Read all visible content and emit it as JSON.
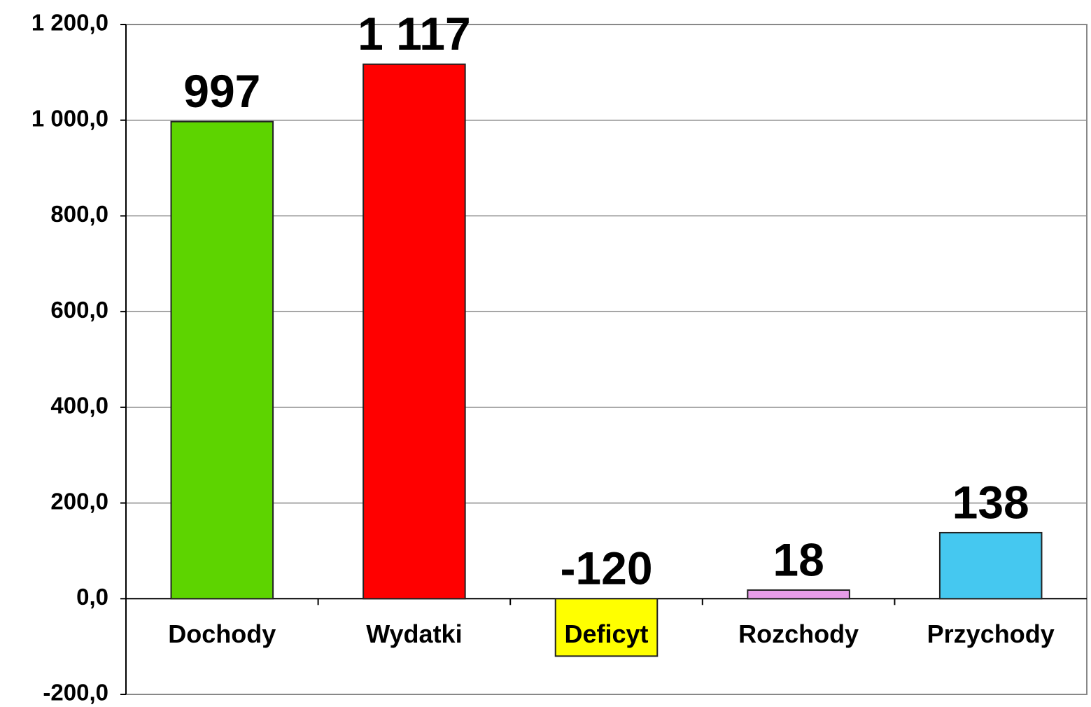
{
  "chart_data": {
    "type": "bar",
    "categories": [
      "Dochody",
      "Wydatki",
      "Deficyt",
      "Rozchody",
      "Przychody"
    ],
    "values": [
      997,
      1117,
      -120,
      18,
      138
    ],
    "value_labels": [
      "997",
      "1 117",
      "-120",
      "18",
      "138"
    ],
    "colors": [
      "#5dd400",
      "#ff0000",
      "#ffff00",
      "#e79de8",
      "#45c8f0"
    ],
    "ylim": [
      -200,
      1200
    ],
    "yticks": [
      {
        "value": -200,
        "label": "-200,0"
      },
      {
        "value": 0,
        "label": "0,0"
      },
      {
        "value": 200,
        "label": "200,0"
      },
      {
        "value": 400,
        "label": "400,0"
      },
      {
        "value": 600,
        "label": "600,0"
      },
      {
        "value": 800,
        "label": "800,0"
      },
      {
        "value": 1000,
        "label": "1 000,0"
      },
      {
        "value": 1200,
        "label": "1 200,0"
      }
    ],
    "grid": true
  }
}
